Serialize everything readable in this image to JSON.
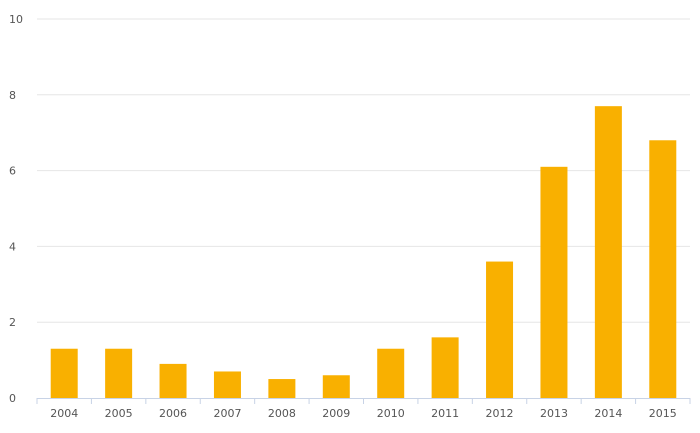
{
  "chart_data": {
    "type": "bar",
    "title": "",
    "xlabel": "",
    "ylabel": "",
    "categories": [
      "2004",
      "2005",
      "2006",
      "2007",
      "2008",
      "2009",
      "2010",
      "2011",
      "2012",
      "2013",
      "2014",
      "2015"
    ],
    "values": [
      1.3,
      1.3,
      0.9,
      0.7,
      0.5,
      0.6,
      1.3,
      1.6,
      3.6,
      6.1,
      7.7,
      6.8
    ],
    "ylim": [
      0,
      10
    ],
    "yticks": [
      "0",
      "2",
      "4",
      "6",
      "8",
      "10"
    ],
    "grid": true,
    "legend": "none",
    "colors": {
      "bar": "#F9B000",
      "grid": "#e6e6e6",
      "axis": "#c8d3e6",
      "text": "#555555"
    }
  }
}
